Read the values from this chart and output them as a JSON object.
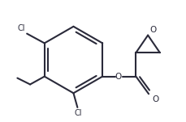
{
  "bg_color": "#ffffff",
  "line_color": "#2a2a3a",
  "text_color": "#2a2a3a",
  "Cl1_label": "Cl",
  "Cl2_label": "Cl",
  "ester_O_label": "O",
  "carbonyl_O_label": "O",
  "epoxide_O_label": "O"
}
